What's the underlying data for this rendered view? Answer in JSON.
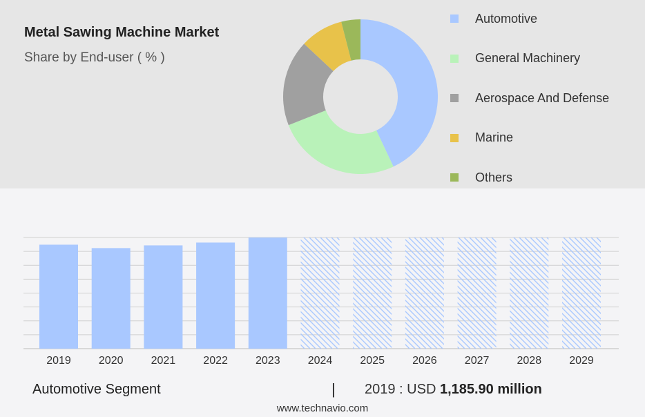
{
  "header": {
    "title": "Metal Sawing Machine Market",
    "subtitle": "Share by End-user ( % )"
  },
  "colors": {
    "automotive": "#a9c8ff",
    "general_machinery": "#b9f2b9",
    "aerospace": "#a0a0a0",
    "marine": "#e8c24a",
    "others": "#9bb85a",
    "bar": "#a9c8ff",
    "forecast_hatch": "#a9c8ff"
  },
  "chart_data": [
    {
      "type": "pie",
      "variant": "donut",
      "categories": [
        "Automotive",
        "General Machinery",
        "Aerospace And Defense",
        "Marine",
        "Others"
      ],
      "values": [
        43,
        26,
        18,
        9,
        4
      ],
      "legend_position": "right"
    },
    {
      "type": "bar",
      "categories": [
        "2019",
        "2020",
        "2021",
        "2022",
        "2023",
        "2024",
        "2025",
        "2026",
        "2027",
        "2028",
        "2029"
      ],
      "values": [
        1185.9,
        1147,
        1178,
        1210,
        1268,
        null,
        null,
        null,
        null,
        null,
        null
      ],
      "forecast_categories": [
        "2024",
        "2025",
        "2026",
        "2027",
        "2028",
        "2029"
      ],
      "grid": true
    }
  ],
  "footer": {
    "segment_label": "Automotive Segment",
    "separator": "|",
    "stat_prefix": "2019 : USD",
    "stat_value": "1,185.90 million"
  },
  "source": "www.technavio.com"
}
